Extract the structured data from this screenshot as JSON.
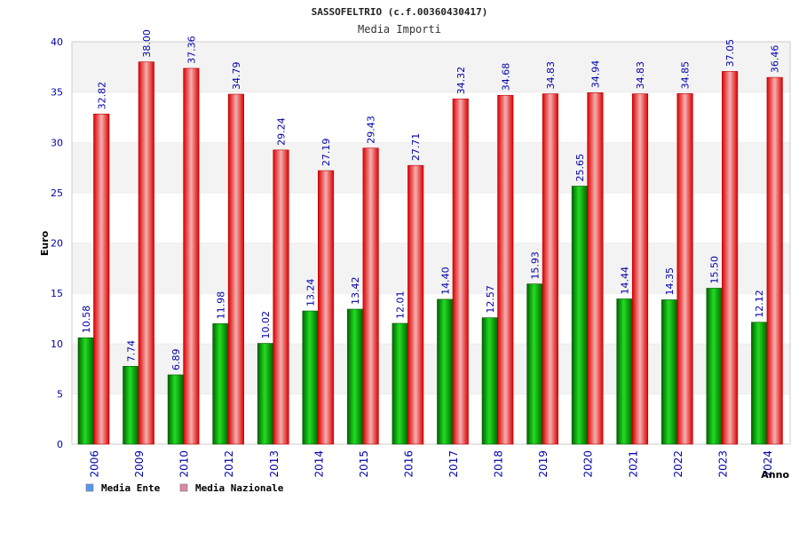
{
  "chart_data": {
    "type": "bar",
    "title": "SASSOFELTRIO (c.f.00360430417)",
    "subtitle": "Media Importi",
    "ylabel": "Euro",
    "xlabel": "Anno",
    "ylim": [
      0,
      40
    ],
    "yticks": [
      0,
      5,
      10,
      15,
      20,
      25,
      30,
      35,
      40
    ],
    "grid": "horizontal bands",
    "legend_position": "bottom-left",
    "categories": [
      "2006",
      "2009",
      "2010",
      "2012",
      "2013",
      "2014",
      "2015",
      "2016",
      "2017",
      "2018",
      "2019",
      "2020",
      "2021",
      "2022",
      "2023",
      "2024"
    ],
    "series": [
      {
        "name": "Media Ente",
        "color": "#00b000",
        "legend_color": "#5599ee",
        "values": [
          10.58,
          7.74,
          6.89,
          11.98,
          10.02,
          13.24,
          13.42,
          12.01,
          14.4,
          12.57,
          15.93,
          25.65,
          14.44,
          14.35,
          15.5,
          12.12
        ],
        "labels": [
          "10.58",
          "7.74",
          "6.89",
          "11.98",
          "10.02",
          "13.24",
          "13.42",
          "12.01",
          "14.40",
          "12.57",
          "15.93",
          "25.65",
          "14.44",
          "14.35",
          "15.50",
          "12.12"
        ]
      },
      {
        "name": "Media Nazionale",
        "color": "#ee1111",
        "legend_color": "#dd88aa",
        "values": [
          32.82,
          38.0,
          37.36,
          34.79,
          29.24,
          27.19,
          29.43,
          27.71,
          34.32,
          34.68,
          34.83,
          34.94,
          34.83,
          34.85,
          37.05,
          36.46
        ],
        "labels": [
          "32.82",
          "38.00",
          "37.36",
          "34.79",
          "29.24",
          "27.19",
          "29.43",
          "27.71",
          "34.32",
          "34.68",
          "34.83",
          "34.94",
          "34.83",
          "34.85",
          "37.05",
          "36.46"
        ]
      }
    ]
  }
}
